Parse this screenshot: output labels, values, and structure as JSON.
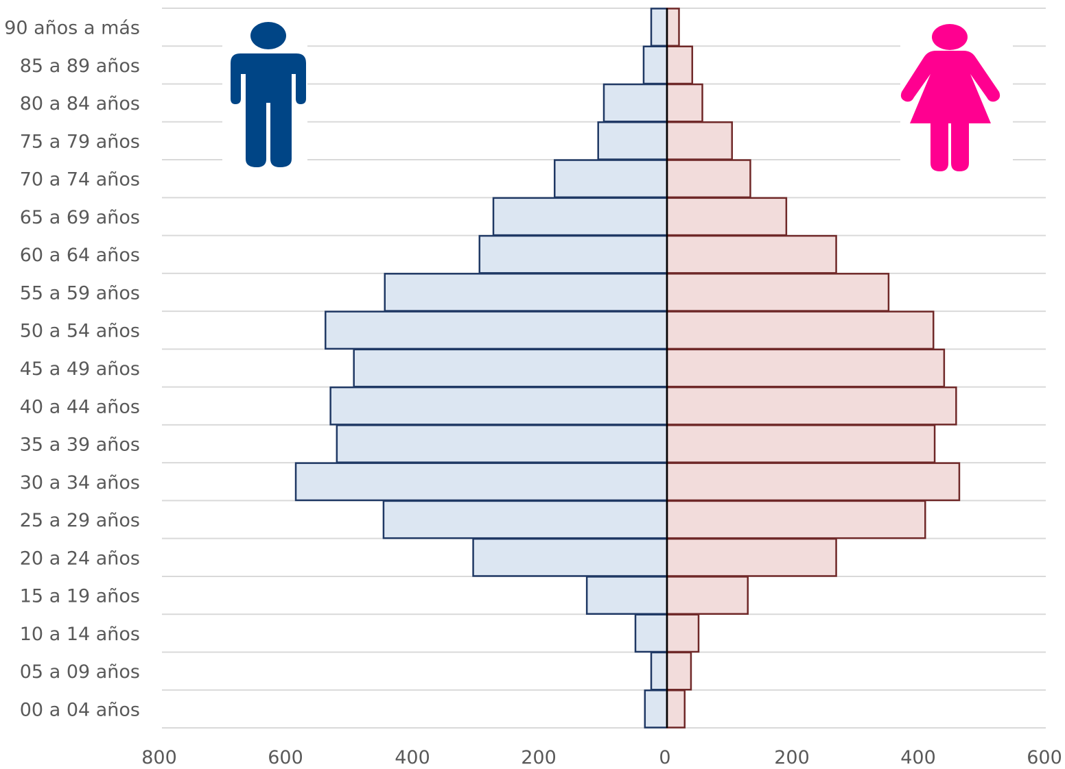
{
  "chart_data": {
    "type": "bar",
    "orientation": "horizontal",
    "layout": "population-pyramid",
    "categories": [
      "00 a 04 años",
      "05 a 09 años",
      "10 a 14 años",
      "15 a 19 años",
      "20 a 24 años",
      "25 a 29 años",
      "30 a 34 años",
      "35 a 39 años",
      "40 a 44 años",
      "45 a 49 años",
      "50 a 54 años",
      "55 a 59 años",
      "60 a 64 años",
      "65 a 69 años",
      "70 a 74 años",
      "75 a 79 años",
      "80 a 84 años",
      "85 a 89 años",
      "90 años a más"
    ],
    "series": [
      {
        "side": "left",
        "icon": "male-person-icon",
        "fill": "#dce6f2",
        "stroke": "#1f3864",
        "icon_color": "#004586",
        "values": [
          35,
          25,
          50,
          127,
          307,
          449,
          588,
          523,
          533,
          496,
          541,
          447,
          297,
          275,
          178,
          109,
          100,
          37,
          25
        ]
      },
      {
        "side": "right",
        "icon": "female-person-icon",
        "fill": "#f2dcdb",
        "stroke": "#6f2828",
        "icon_color": "#ff0090",
        "values": [
          28,
          38,
          50,
          128,
          268,
          409,
          463,
          424,
          458,
          439,
          422,
          351,
          268,
          189,
          132,
          103,
          56,
          40,
          19
        ]
      }
    ],
    "x_ticks": [
      "800",
      "600",
      "400",
      "200",
      "0",
      "200",
      "400",
      "600"
    ],
    "xlim_left": 800,
    "xlim_right": 600,
    "grid": true
  }
}
